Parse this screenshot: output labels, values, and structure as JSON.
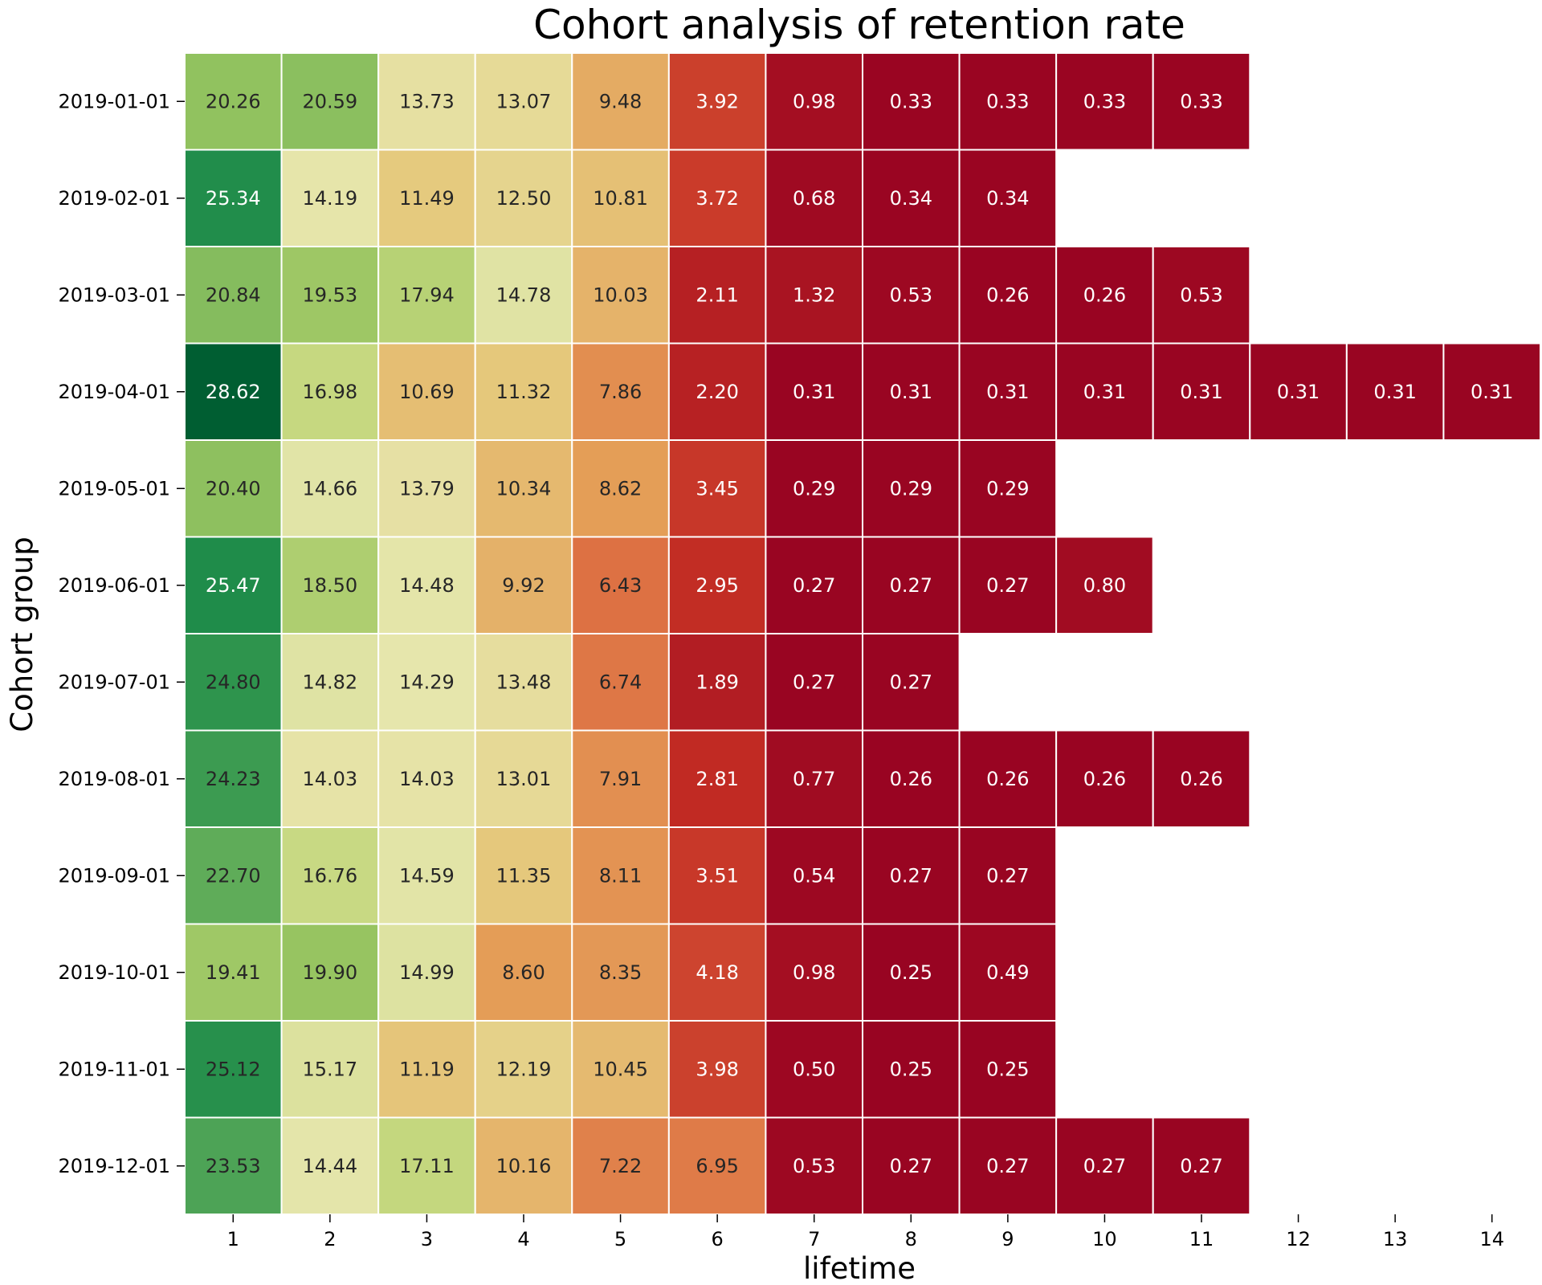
{
  "chart_data": {
    "type": "heatmap",
    "title": "Cohort analysis of retention rate",
    "xlabel": "lifetime",
    "ylabel": "Cohort group",
    "x": [
      "1",
      "2",
      "3",
      "4",
      "5",
      "6",
      "7",
      "8",
      "9",
      "10",
      "11",
      "12",
      "13",
      "14"
    ],
    "y": [
      "2019-01-01",
      "2019-02-01",
      "2019-03-01",
      "2019-04-01",
      "2019-05-01",
      "2019-06-01",
      "2019-07-01",
      "2019-08-01",
      "2019-09-01",
      "2019-10-01",
      "2019-11-01",
      "2019-12-01"
    ],
    "values": [
      [
        "20.26",
        "20.59",
        "13.73",
        "13.07",
        "9.48",
        "3.92",
        "0.98",
        "0.33",
        "0.33",
        "0.33",
        "0.33",
        null,
        null,
        null
      ],
      [
        "25.34",
        "14.19",
        "11.49",
        "12.50",
        "10.81",
        "3.72",
        "0.68",
        "0.34",
        "0.34",
        null,
        null,
        null,
        null,
        null
      ],
      [
        "20.84",
        "19.53",
        "17.94",
        "14.78",
        "10.03",
        "2.11",
        "1.32",
        "0.53",
        "0.26",
        "0.26",
        "0.53",
        null,
        null,
        null
      ],
      [
        "28.62",
        "16.98",
        "10.69",
        "11.32",
        "7.86",
        "2.20",
        "0.31",
        "0.31",
        "0.31",
        "0.31",
        "0.31",
        "0.31",
        "0.31",
        "0.31"
      ],
      [
        "20.40",
        "14.66",
        "13.79",
        "10.34",
        "8.62",
        "3.45",
        "0.29",
        "0.29",
        "0.29",
        null,
        null,
        null,
        null,
        null
      ],
      [
        "25.47",
        "18.50",
        "14.48",
        "9.92",
        "6.43",
        "2.95",
        "0.27",
        "0.27",
        "0.27",
        "0.80",
        null,
        null,
        null,
        null
      ],
      [
        "24.80",
        "14.82",
        "14.29",
        "13.48",
        "6.74",
        "1.89",
        "0.27",
        "0.27",
        null,
        null,
        null,
        null,
        null,
        null
      ],
      [
        "24.23",
        "14.03",
        "14.03",
        "13.01",
        "7.91",
        "2.81",
        "0.77",
        "0.26",
        "0.26",
        "0.26",
        "0.26",
        null,
        null,
        null
      ],
      [
        "22.70",
        "16.76",
        "14.59",
        "11.35",
        "8.11",
        "3.51",
        "0.54",
        "0.27",
        "0.27",
        null,
        null,
        null,
        null,
        null
      ],
      [
        "19.41",
        "19.90",
        "14.99",
        "8.60",
        "8.35",
        "4.18",
        "0.98",
        "0.25",
        "0.49",
        null,
        null,
        null,
        null,
        null
      ],
      [
        "25.12",
        "15.17",
        "11.19",
        "12.19",
        "10.45",
        "3.98",
        "0.50",
        "0.25",
        "0.25",
        null,
        null,
        null,
        null,
        null
      ],
      [
        "23.53",
        "14.44",
        "17.11",
        "10.16",
        "7.22",
        "6.95",
        "0.53",
        "0.27",
        "0.27",
        "0.27",
        "0.27",
        null,
        null,
        null
      ]
    ],
    "colormap": "RdYlGn",
    "color_range": [
      0,
      28.62
    ],
    "grid": false,
    "legend": "none"
  }
}
